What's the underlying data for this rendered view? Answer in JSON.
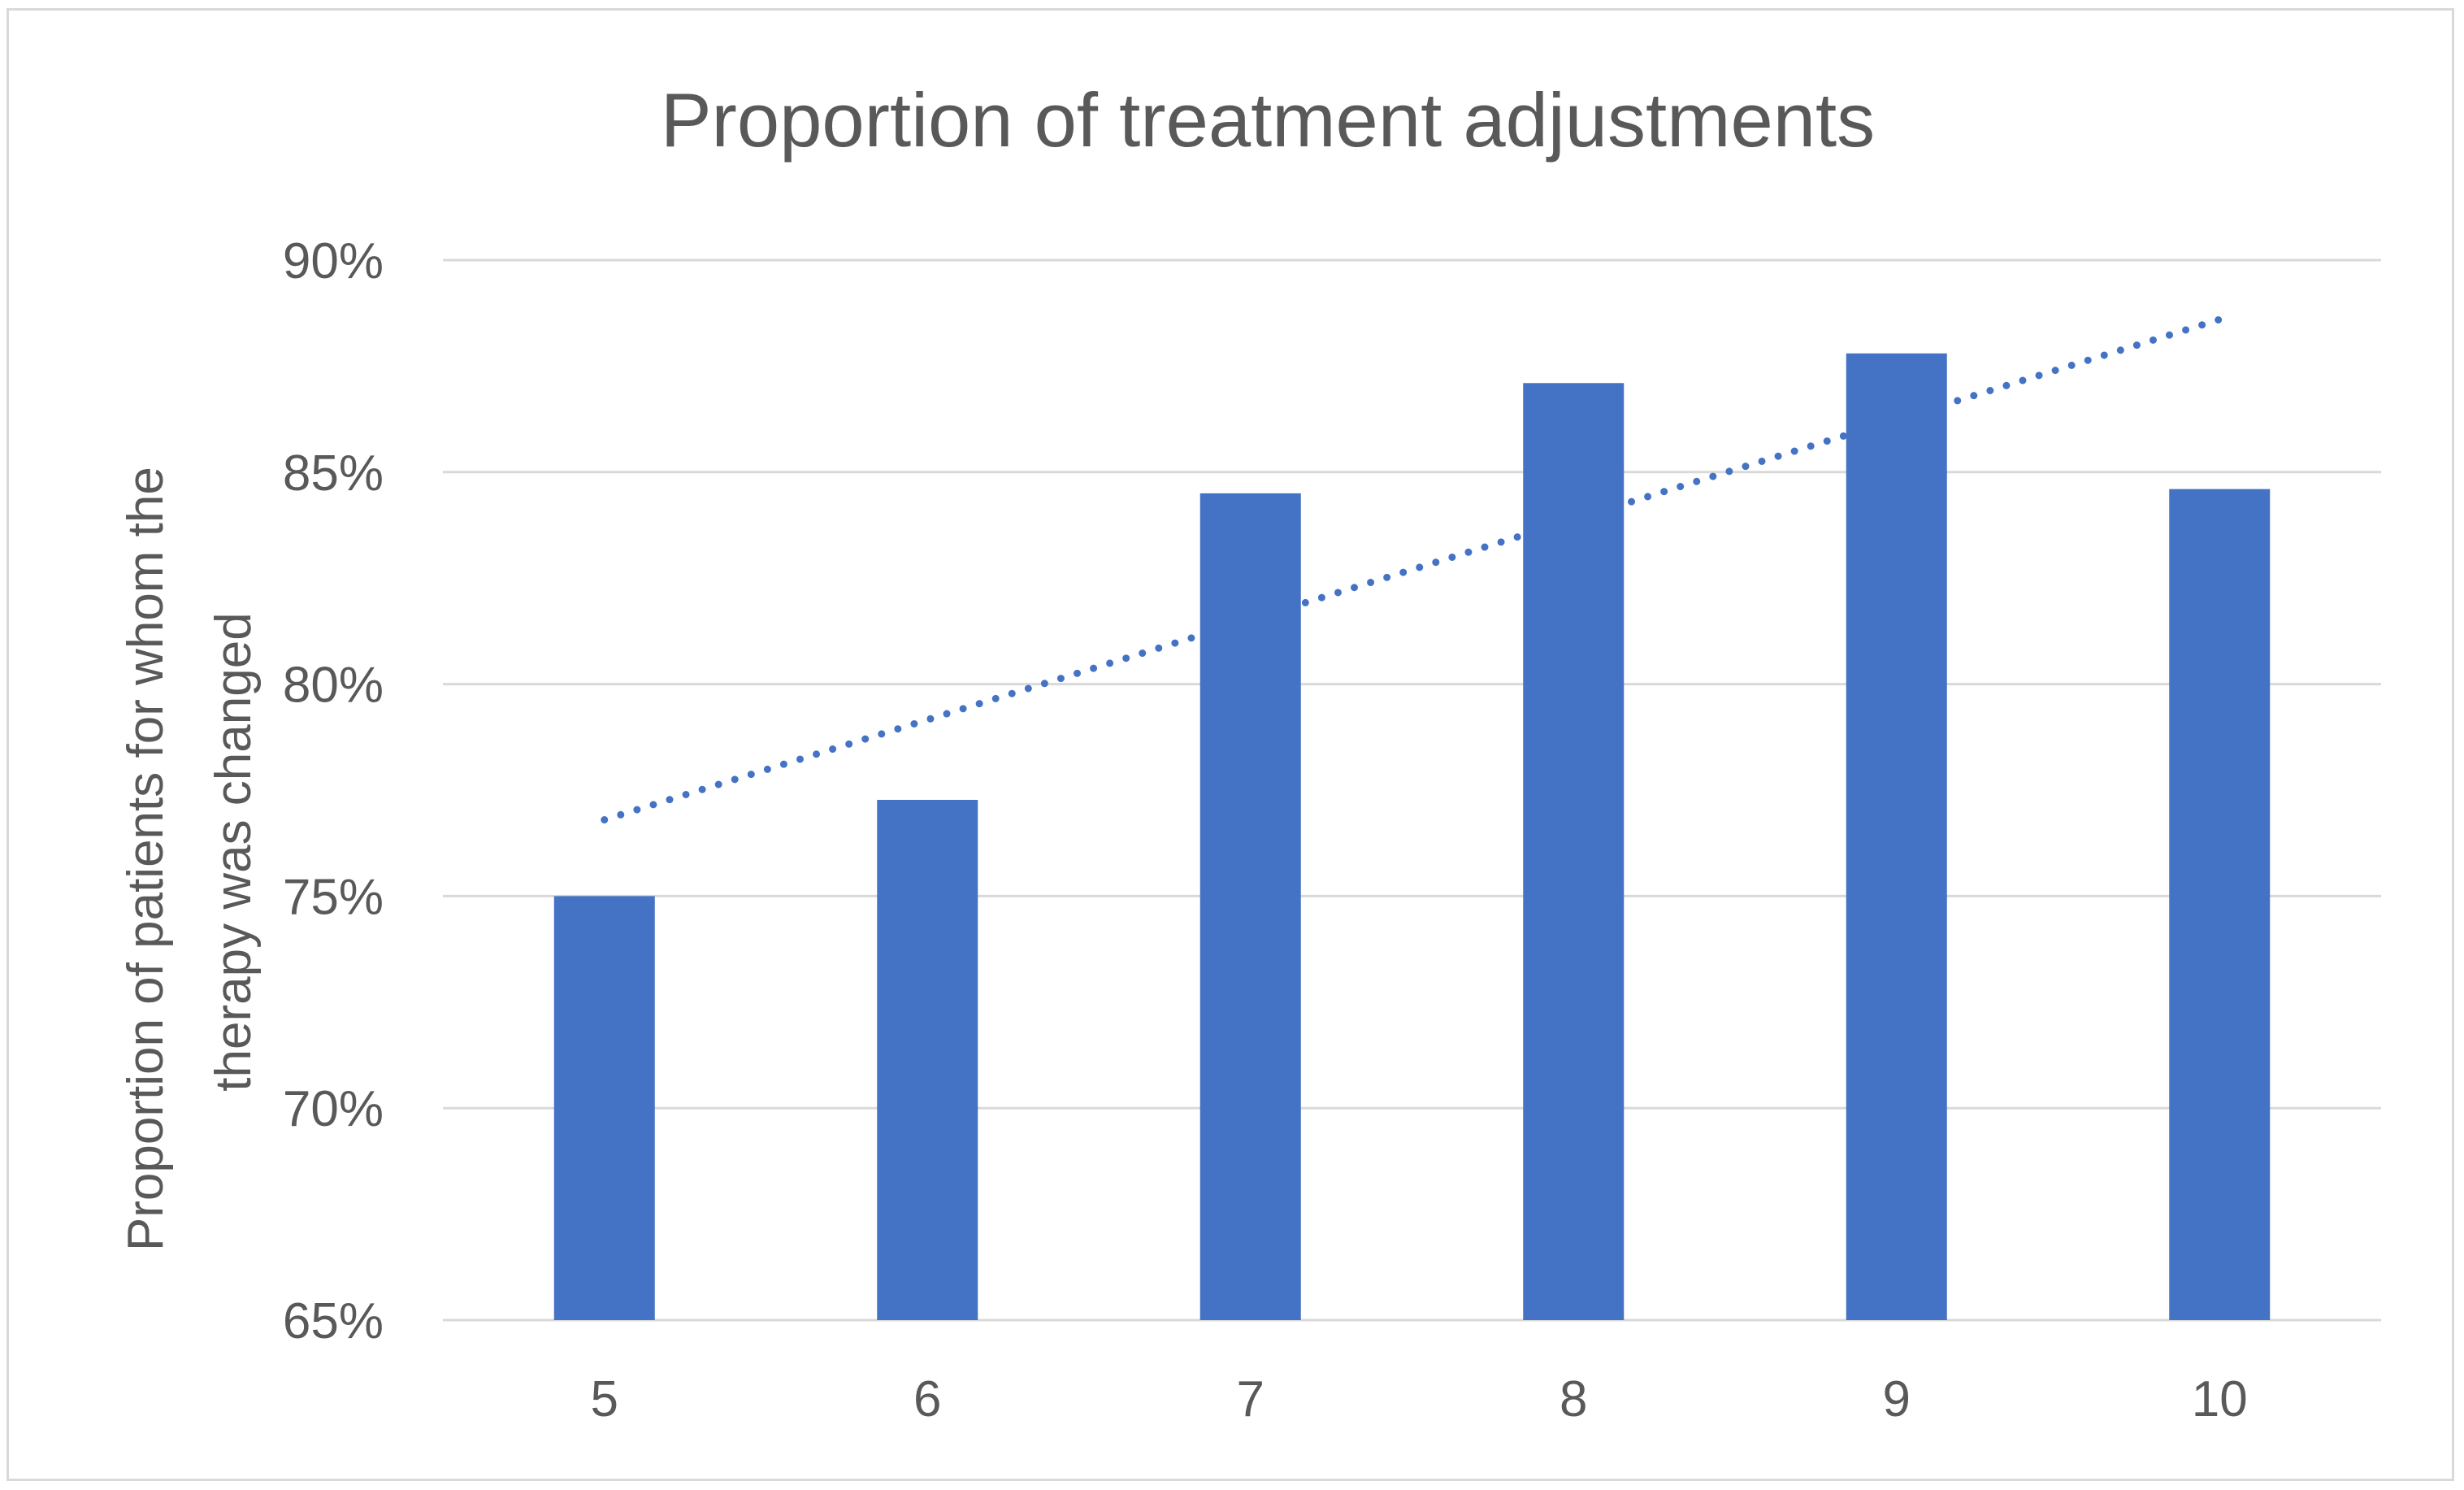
{
  "chart_data": {
    "type": "bar",
    "title": "Proportion of treatment adjustments",
    "xlabel": "",
    "ylabel_lines": [
      "Proportion of patients for whom the",
      "therapy was changed"
    ],
    "categories": [
      "5",
      "6",
      "7",
      "8",
      "9",
      "10"
    ],
    "series": [
      {
        "values": [
          0.75,
          0.7727,
          0.845,
          0.871,
          0.878,
          0.846
        ],
        "color": "#4472C4"
      }
    ],
    "trendline": {
      "type": "linear",
      "style": "dotted",
      "color": "#4472C4",
      "start": 0.768,
      "end": 0.886
    },
    "ylim": [
      0.65,
      0.9
    ],
    "yticks": [
      0.65,
      0.7,
      0.75,
      0.8,
      0.85,
      0.9
    ],
    "ytick_labels": [
      "65%",
      "70%",
      "75%",
      "80%",
      "85%",
      "90%"
    ],
    "grid": "horizontal",
    "legend": "none"
  }
}
